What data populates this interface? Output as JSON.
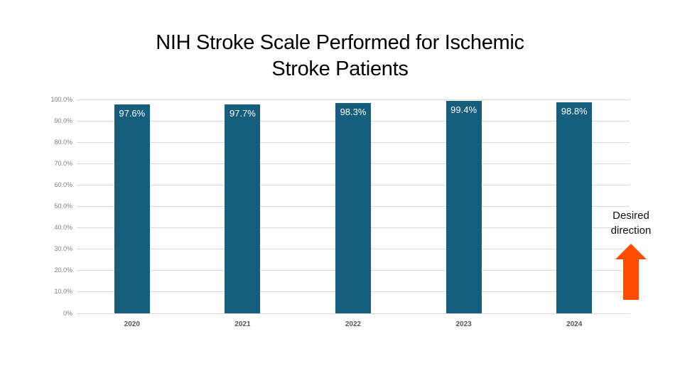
{
  "header": {
    "title": "NIH Stroke Scale Performed for Ischemic Stroke Patients",
    "title_lines": [
      "NIH Stroke Scale Performed for Ischemic",
      "Stroke Patients"
    ]
  },
  "chart_data": {
    "type": "bar",
    "title": "NIH Stroke Scale Performed for Ischemic Stroke Patients",
    "categories": [
      "2020",
      "2021",
      "2022",
      "2023",
      "2024"
    ],
    "values": [
      97.6,
      97.7,
      98.3,
      99.4,
      98.8
    ],
    "value_labels": [
      "97.6%",
      "97.7%",
      "98.3%",
      "99.4%",
      "98.8%"
    ],
    "xlabel": "",
    "ylabel": "",
    "ylim": [
      0,
      100
    ],
    "ytick_step": 10,
    "ytick_labels": [
      "0%",
      "10.0%",
      "20.0%",
      "30.0%",
      "40.0%",
      "50.0%",
      "60.0%",
      "70.0%",
      "80.0%",
      "90.0%",
      "100.0%"
    ],
    "grid": true,
    "legend": "none",
    "bar_color": "#165e7e",
    "value_label_color": "#ffffff",
    "grid_color": "#d9d9d9",
    "ytick_color": "#7f7f7f",
    "xtick_color": "#595959"
  },
  "annotation": {
    "text": "Desired direction",
    "text_lines": [
      "Desired",
      "direction"
    ],
    "arrow_direction": "up",
    "arrow_color": "#ff4d00"
  }
}
